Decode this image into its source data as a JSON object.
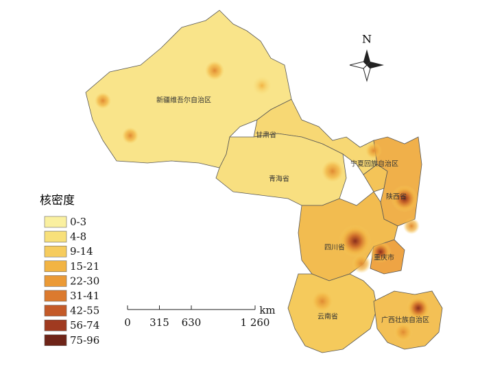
{
  "north": "N",
  "legend": {
    "title": "核密度",
    "items": [
      {
        "label": "0-3",
        "color": "#faf0a0"
      },
      {
        "label": "4-8",
        "color": "#f8e07a"
      },
      {
        "label": "9-14",
        "color": "#f6cc5e"
      },
      {
        "label": "15-21",
        "color": "#f2b443"
      },
      {
        "label": "22-30",
        "color": "#eb9a36"
      },
      {
        "label": "31-41",
        "color": "#dc7a2e"
      },
      {
        "label": "42-55",
        "color": "#c45a28"
      },
      {
        "label": "56-74",
        "color": "#a03a20"
      },
      {
        "label": "75-96",
        "color": "#6e2418"
      }
    ]
  },
  "scale_bar": {
    "unit": "km",
    "ticks": [
      0,
      315,
      630,
      {
        "value": 1260,
        "label": "1 260"
      }
    ]
  },
  "provinces": [
    "新疆维吾尔自治区",
    "甘肃省",
    "青海省",
    "宁夏回族自治区",
    "陕西省",
    "四川省",
    "重庆市",
    "云南省",
    "广西壮族自治区"
  ]
}
